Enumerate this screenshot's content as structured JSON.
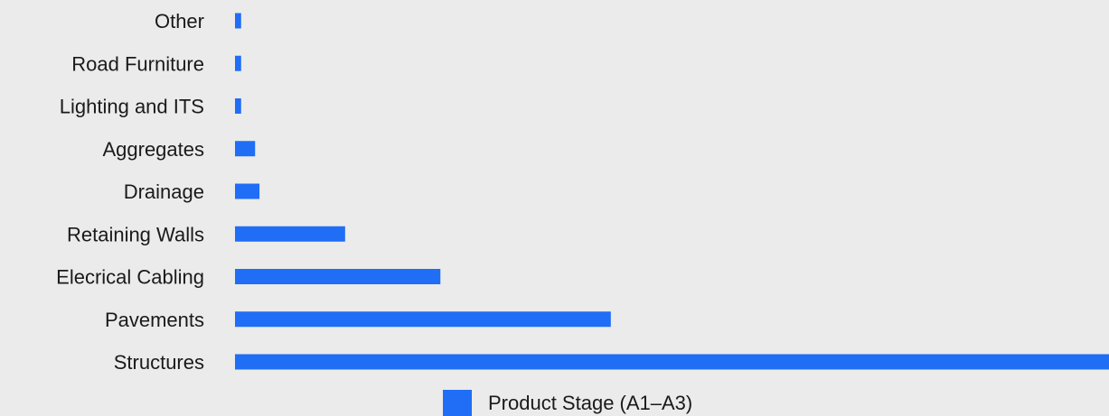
{
  "chart_data": {
    "type": "bar",
    "orientation": "horizontal",
    "categories": [
      "Other",
      "Road Furniture",
      "Lighting and ITS",
      "Aggregates",
      "Drainage",
      "Retaining Walls",
      "Elecrical Cabling",
      "Pavements",
      "Structures"
    ],
    "series": [
      {
        "name": "Product Stage (A1–A3)",
        "values": [
          0.7,
          0.7,
          0.7,
          2.3,
          2.8,
          12.6,
          23.5,
          43.0,
          100
        ]
      }
    ],
    "title": "",
    "xlabel": "",
    "ylabel": "",
    "xlim": [
      0,
      100
    ],
    "grid": false,
    "legend_position": "bottom-center",
    "colors": {
      "bar": "#1f6ef5",
      "background": "#ebebeb",
      "text": "#1a1a1a"
    }
  },
  "legend": {
    "label": "Product Stage (A1–A3)"
  }
}
